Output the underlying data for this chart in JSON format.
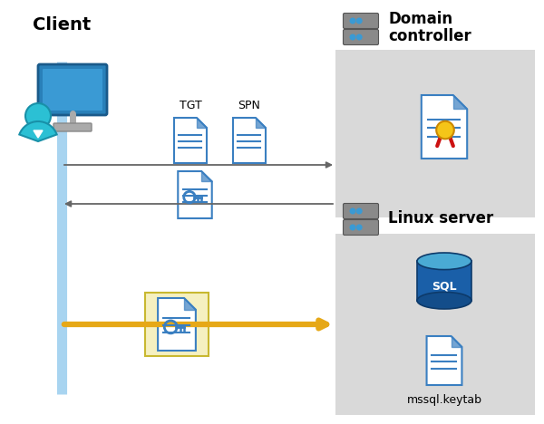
{
  "bg_color": "#ffffff",
  "client_label": "Client",
  "domain_label": "Domain\ncontroller",
  "linux_label": "Linux server",
  "tgt_label": "TGT",
  "spn_label": "SPN",
  "mssql_label": "mssql.keytab",
  "gray_box": "#d9d9d9",
  "blue_line": "#a8d4f0",
  "arrow_color_gray": "#666666",
  "arrow_color_gold": "#e6a817",
  "highlight_box": "#f5f0c0",
  "doc_color": "#3a7fc1",
  "doc_color2": "#2c6fad",
  "server_gray": "#888888",
  "server_dark": "#555555",
  "sql_blue": "#1a5fa8",
  "sql_top": "#4aaad4"
}
